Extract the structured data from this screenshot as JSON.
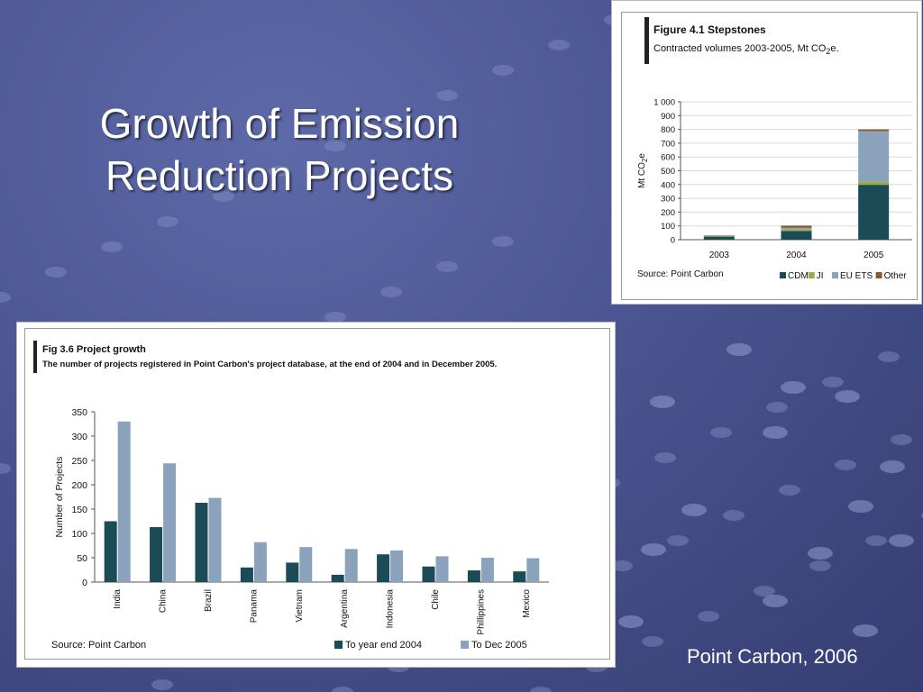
{
  "slide": {
    "title_line1": "Growth of Emission",
    "title_line2": "Reduction Projects",
    "caption": "Point Carbon, 2006"
  },
  "colors": {
    "background": "#4a5591",
    "dark_teal": "#1b4b57",
    "light_blue": "#8aa2bb",
    "ji_green": "#9aab4a",
    "other_brown": "#8a5a2a"
  },
  "chart_data": [
    {
      "type": "bar",
      "stacked": true,
      "title": "Figure 4.1 Stepstones",
      "subtitle_text": "Contracted volumes 2003-2005, Mt CO",
      "subtitle_sub": "2",
      "subtitle_end": "e.",
      "ylabel_text": "Mt CO",
      "ylabel_sub": "2",
      "ylabel_end": "e",
      "source": "Source: Point Carbon",
      "categories": [
        "2003",
        "2004",
        "2005"
      ],
      "ylim": [
        0,
        1000
      ],
      "yticks": [
        "0",
        "100",
        "200",
        "300",
        "400",
        "500",
        "600",
        "700",
        "800",
        "900",
        "1 000"
      ],
      "yticks_values": [
        0,
        100,
        200,
        300,
        400,
        500,
        600,
        700,
        800,
        900,
        1000
      ],
      "grid": true,
      "legend_position": "bottom-right",
      "series": [
        {
          "name": "CDM",
          "color": "#1b4b57",
          "values": [
            22,
            62,
            398
          ]
        },
        {
          "name": "JI",
          "color": "#9aab4a",
          "values": [
            4,
            12,
            25
          ]
        },
        {
          "name": "EU ETS",
          "color": "#8aa2bb",
          "values": [
            0,
            12,
            365
          ]
        },
        {
          "name": "Other",
          "color": "#8a5a2a",
          "values": [
            4,
            16,
            12
          ]
        }
      ]
    },
    {
      "type": "bar",
      "title": "Fig 3.6 Project growth",
      "subtitle": "The number of projects registered in Point Carbon's project database, at the end of 2004 and in December 2005.",
      "ylabel": "Number of Projects",
      "source": "Source: Point Carbon",
      "categories": [
        "India",
        "China",
        "Brazil",
        "Panama",
        "Vietnam",
        "Argentina",
        "Indonesia",
        "Chile",
        "Phillippines",
        "Mexico"
      ],
      "ylim": [
        0,
        350
      ],
      "yticks": [
        "0",
        "50",
        "100",
        "150",
        "200",
        "250",
        "300",
        "350"
      ],
      "yticks_values": [
        0,
        50,
        100,
        150,
        200,
        250,
        300,
        350
      ],
      "grid": false,
      "legend_position": "bottom-right",
      "series": [
        {
          "name": "To year end 2004",
          "color": "#1b4b57",
          "values": [
            125,
            113,
            163,
            30,
            40,
            15,
            57,
            32,
            24,
            22
          ]
        },
        {
          "name": "To Dec 2005",
          "color": "#8aa2bb",
          "values": [
            330,
            244,
            173,
            82,
            72,
            68,
            65,
            53,
            50,
            49
          ]
        }
      ]
    }
  ]
}
